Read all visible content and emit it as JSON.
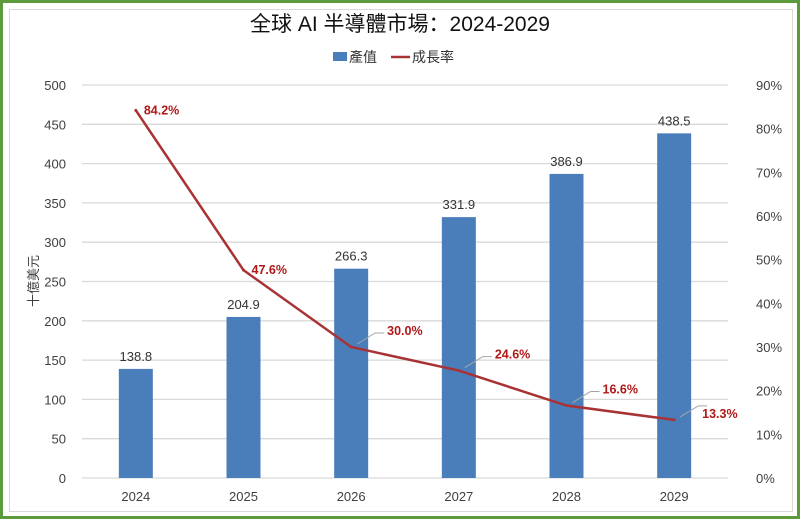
{
  "chart_data": {
    "type": "bar+line",
    "title": "全球 AI 半導體市場：2024-2029",
    "categories": [
      "2024",
      "2025",
      "2026",
      "2027",
      "2028",
      "2029"
    ],
    "series": [
      {
        "name": "產值",
        "type": "bar",
        "axis": "left",
        "color": "#4a7ebb",
        "values": [
          138.8,
          204.9,
          266.3,
          331.9,
          386.9,
          438.5
        ],
        "labels": [
          "138.8",
          "204.9",
          "266.3",
          "331.9",
          "386.9",
          "438.5"
        ]
      },
      {
        "name": "成長率",
        "type": "line",
        "axis": "right",
        "color": "#a83234",
        "values": [
          84.2,
          47.6,
          30.0,
          24.6,
          16.6,
          13.3
        ],
        "labels": [
          "84.2%",
          "47.6%",
          "30.0%",
          "24.6%",
          "16.6%",
          "13.3%"
        ]
      }
    ],
    "ylabel": "十億美元",
    "ylim": [
      0,
      500
    ],
    "yticks": [
      "0",
      "50",
      "100",
      "150",
      "200",
      "250",
      "300",
      "350",
      "400",
      "450",
      "500"
    ],
    "y2lim": [
      0,
      90
    ],
    "y2ticks": [
      "0%",
      "10%",
      "20%",
      "30%",
      "40%",
      "50%",
      "60%",
      "70%",
      "80%",
      "90%"
    ],
    "grid": true,
    "legend_position": "top"
  },
  "colors": {
    "border": "#5b9b3c",
    "grid": "#d9d9d9",
    "label": "#b01818"
  }
}
